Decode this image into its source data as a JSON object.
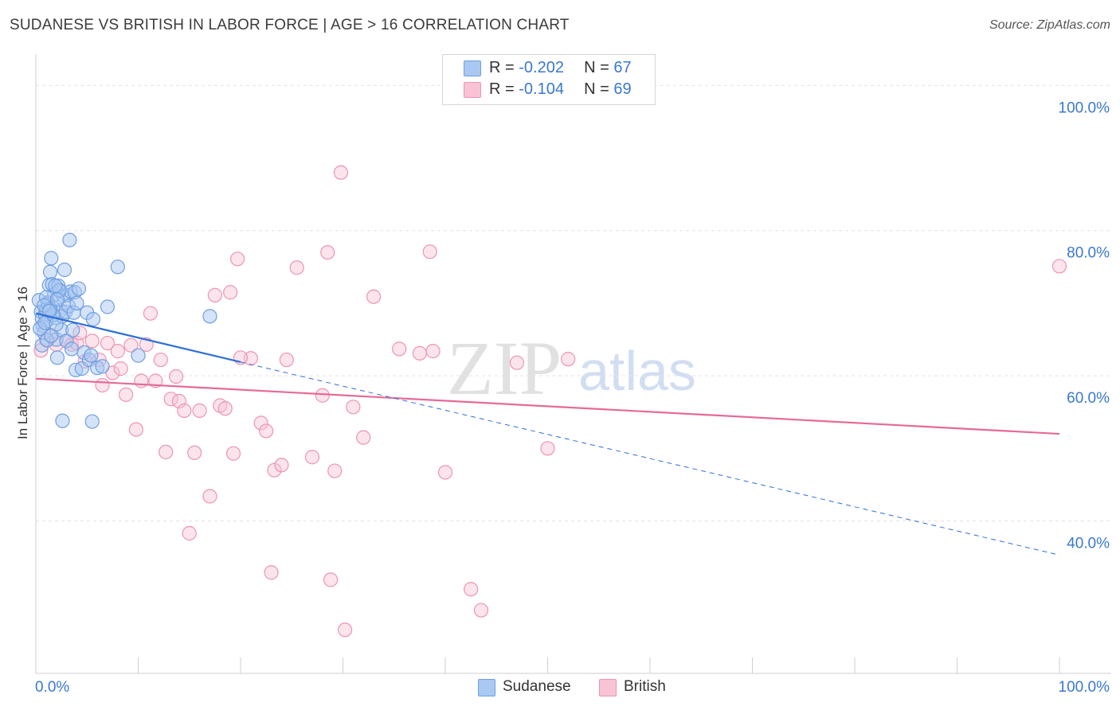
{
  "title": "SUDANESE VS BRITISH IN LABOR FORCE | AGE > 16 CORRELATION CHART",
  "source": "Source: ZipAtlas.com",
  "legend": {
    "rows": [
      {
        "r_label": "R = ",
        "r_value": "-0.202",
        "n_label": "N = ",
        "n_value": "67"
      },
      {
        "r_label": "R = ",
        "r_value": "-0.104",
        "n_label": "N = ",
        "n_value": "69"
      }
    ]
  },
  "bottom_legend": {
    "sudanese": "Sudanese",
    "british": "British"
  },
  "watermark": {
    "zip": "ZIP",
    "atlas": "atlas"
  },
  "colors": {
    "sudanese_fill": "#a9c8f2",
    "sudanese_stroke": "#6f9fe0",
    "sudanese_line": "#2f6fd6",
    "british_fill": "#f8c3d5",
    "british_stroke": "#ec94b3",
    "british_line": "#e56a97",
    "axis_text": "#3a78d0",
    "grid": "#e2e2e2"
  },
  "chart_data": {
    "type": "scatter",
    "title": "SUDANESE VS BRITISH IN LABOR FORCE | AGE > 16 CORRELATION CHART",
    "xlabel": "",
    "ylabel": "In Labor Force | Age > 16",
    "xlim": [
      0,
      100
    ],
    "ylim": [
      19,
      103
    ],
    "x_tick_labels": [
      "0.0%",
      "100.0%"
    ],
    "y_ticks": [
      40,
      60,
      80,
      100
    ],
    "y_tick_labels": [
      "40.0%",
      "60.0%",
      "80.0%",
      "100.0%"
    ],
    "grid": true,
    "series": [
      {
        "name": "Sudanese",
        "r": -0.202,
        "n": 67,
        "trend": {
          "x0": 0,
          "y0": 68.6,
          "x1": 20,
          "y1": 61.9,
          "dashed_to_x": 100,
          "dashed_to_y": 35.3
        },
        "points": [
          [
            0.3,
            70.4
          ],
          [
            0.5,
            68.8
          ],
          [
            0.6,
            67.9
          ],
          [
            0.7,
            66.9
          ],
          [
            0.8,
            65.9
          ],
          [
            0.9,
            68.5
          ],
          [
            1.0,
            69.1
          ],
          [
            1.1,
            67.6
          ],
          [
            1.2,
            70.1
          ],
          [
            1.3,
            72.5
          ],
          [
            1.4,
            74.3
          ],
          [
            1.5,
            76.2
          ],
          [
            1.6,
            72.6
          ],
          [
            1.7,
            69.4
          ],
          [
            1.8,
            71.2
          ],
          [
            1.9,
            68.0
          ],
          [
            2.0,
            65.0
          ],
          [
            2.1,
            62.5
          ],
          [
            2.2,
            72.4
          ],
          [
            2.3,
            71.7
          ],
          [
            2.4,
            69.0
          ],
          [
            2.5,
            66.3
          ],
          [
            2.6,
            68.2
          ],
          [
            2.7,
            71.0
          ],
          [
            2.8,
            74.6
          ],
          [
            2.9,
            68.8
          ],
          [
            3.0,
            64.8
          ],
          [
            3.1,
            71.1
          ],
          [
            3.2,
            69.6
          ],
          [
            3.3,
            78.7
          ],
          [
            3.4,
            71.6
          ],
          [
            3.5,
            63.7
          ],
          [
            3.6,
            66.3
          ],
          [
            3.7,
            68.7
          ],
          [
            3.8,
            71.5
          ],
          [
            3.9,
            60.8
          ],
          [
            4.0,
            70.0
          ],
          [
            4.2,
            72.0
          ],
          [
            4.5,
            61.0
          ],
          [
            4.7,
            63.2
          ],
          [
            5.0,
            68.7
          ],
          [
            5.2,
            62.2
          ],
          [
            5.4,
            62.8
          ],
          [
            5.6,
            67.8
          ],
          [
            6.0,
            61.1
          ],
          [
            6.5,
            61.3
          ],
          [
            7.0,
            69.5
          ],
          [
            8.0,
            75.0
          ],
          [
            10.0,
            62.8
          ],
          [
            17.0,
            68.2
          ],
          [
            0.4,
            66.5
          ],
          [
            0.6,
            64.2
          ],
          [
            0.9,
            67.3
          ],
          [
            1.1,
            64.9
          ],
          [
            1.2,
            69.9
          ],
          [
            1.5,
            65.5
          ],
          [
            1.7,
            68.4
          ],
          [
            2.0,
            67.1
          ],
          [
            2.3,
            71.8
          ],
          [
            2.6,
            53.8
          ],
          [
            5.5,
            53.7
          ],
          [
            1.0,
            70.8
          ],
          [
            1.4,
            69.2
          ],
          [
            1.9,
            72.4
          ],
          [
            2.1,
            70.5
          ],
          [
            0.8,
            69.7
          ],
          [
            1.3,
            68.9
          ]
        ]
      },
      {
        "name": "British",
        "r": -0.104,
        "n": 69,
        "trend": {
          "x0": 0,
          "y0": 59.6,
          "x1": 100,
          "y1": 52.0
        },
        "points": [
          [
            0.5,
            63.5
          ],
          [
            1.0,
            65.0
          ],
          [
            1.5,
            65.6
          ],
          [
            2.0,
            64.3
          ],
          [
            3.0,
            64.8
          ],
          [
            3.5,
            64.3
          ],
          [
            4.0,
            64.5
          ],
          [
            4.3,
            65.9
          ],
          [
            4.8,
            62.0
          ],
          [
            5.5,
            64.8
          ],
          [
            6.2,
            62.2
          ],
          [
            6.5,
            58.7
          ],
          [
            7.0,
            64.5
          ],
          [
            7.5,
            60.4
          ],
          [
            8.0,
            63.4
          ],
          [
            8.3,
            61.0
          ],
          [
            8.8,
            57.4
          ],
          [
            9.3,
            64.2
          ],
          [
            9.8,
            52.6
          ],
          [
            10.3,
            59.3
          ],
          [
            10.8,
            64.3
          ],
          [
            11.2,
            68.6
          ],
          [
            11.7,
            59.3
          ],
          [
            12.2,
            62.2
          ],
          [
            12.7,
            49.5
          ],
          [
            13.2,
            56.8
          ],
          [
            13.7,
            59.9
          ],
          [
            14.0,
            56.5
          ],
          [
            14.5,
            55.2
          ],
          [
            15.0,
            38.3
          ],
          [
            15.5,
            49.4
          ],
          [
            16.0,
            55.2
          ],
          [
            17.0,
            43.4
          ],
          [
            17.5,
            71.1
          ],
          [
            18.0,
            55.9
          ],
          [
            18.5,
            55.5
          ],
          [
            19.0,
            71.5
          ],
          [
            19.3,
            49.3
          ],
          [
            19.7,
            76.1
          ],
          [
            21.0,
            62.4
          ],
          [
            22.0,
            53.5
          ],
          [
            22.5,
            52.4
          ],
          [
            23.0,
            32.9
          ],
          [
            23.3,
            47.0
          ],
          [
            24.0,
            47.7
          ],
          [
            24.5,
            62.2
          ],
          [
            25.5,
            74.9
          ],
          [
            27.0,
            48.8
          ],
          [
            28.0,
            57.3
          ],
          [
            28.5,
            77.0
          ],
          [
            28.8,
            31.9
          ],
          [
            29.2,
            46.9
          ],
          [
            29.8,
            88.0
          ],
          [
            30.2,
            25.0
          ],
          [
            31.0,
            55.7
          ],
          [
            32.0,
            51.5
          ],
          [
            33.0,
            70.9
          ],
          [
            35.5,
            63.7
          ],
          [
            37.5,
            63.1
          ],
          [
            38.5,
            77.1
          ],
          [
            38.8,
            63.4
          ],
          [
            40.0,
            46.7
          ],
          [
            42.5,
            30.6
          ],
          [
            43.5,
            27.7
          ],
          [
            47.0,
            61.8
          ],
          [
            50.0,
            50.0
          ],
          [
            52.0,
            62.3
          ],
          [
            100.0,
            75.1
          ],
          [
            20.0,
            62.5
          ]
        ]
      }
    ]
  }
}
